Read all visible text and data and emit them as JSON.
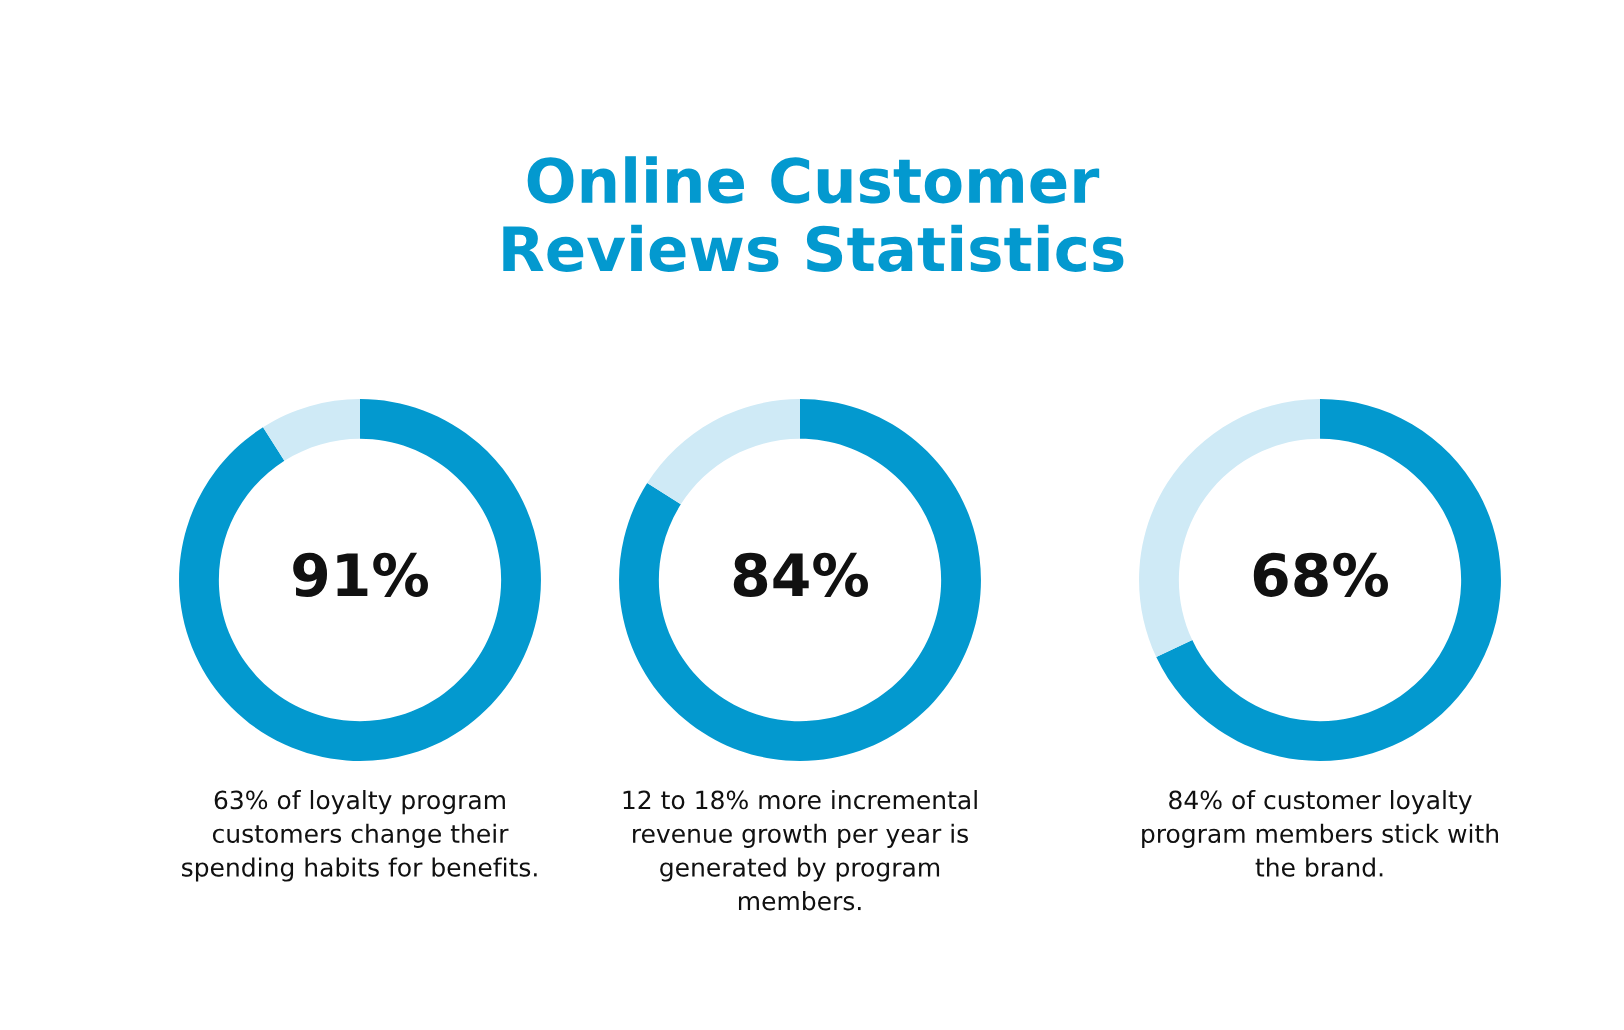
{
  "chart_data": [
    {
      "type": "other",
      "title": "Online Customer\nReviews Statistics"
    },
    {
      "type": "donut",
      "categories": [
        null,
        null
      ],
      "values": [
        91,
        9
      ],
      "colors": [
        "#0399cf",
        "#cfeaf6"
      ],
      "value_labels": [
        "91%",
        null
      ],
      "annotations": [
        "63% of loyalty program\ncustomers change their\nspending habits for benefits."
      ]
    },
    {
      "type": "donut",
      "categories": [
        null,
        null
      ],
      "values": [
        84,
        16
      ],
      "colors": [
        "#0399cf",
        "#cfeaf6"
      ],
      "value_labels": [
        "84%",
        null
      ],
      "annotations": [
        "12 to 18% more incremental\nrevenue growth per year is\ngenerated by program\nmembers."
      ]
    },
    {
      "type": "donut",
      "categories": [
        null,
        null
      ],
      "values": [
        68,
        32
      ],
      "colors": [
        "#0399cf",
        "#cfeaf6"
      ],
      "value_labels": [
        "68%",
        null
      ],
      "annotations": [
        "84% of customer loyalty\nprogram members stick with\nthe brand."
      ]
    }
  ]
}
